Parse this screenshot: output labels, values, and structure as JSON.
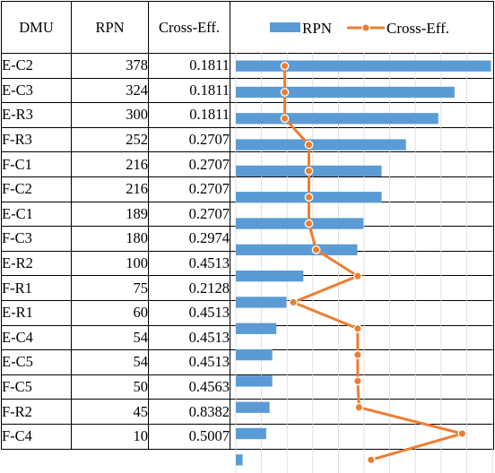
{
  "table": {
    "headers": {
      "dmu": "DMU",
      "rpn": "RPN",
      "cross": "Cross-Eff."
    }
  },
  "chart_data": {
    "type": "bar",
    "orientation": "horizontal",
    "categories": [
      "E-C2",
      "E-C3",
      "E-R3",
      "F-R3",
      "F-C1",
      "F-C2",
      "E-C1",
      "F-C3",
      "E-R2",
      "F-R1",
      "E-R1",
      "E-C4",
      "E-C5",
      "F-C5",
      "F-R2",
      "F-C4"
    ],
    "series": [
      {
        "name": "RPN",
        "type": "bar",
        "color": "#5b9bd5",
        "values": [
          378,
          324,
          300,
          252,
          216,
          216,
          189,
          180,
          100,
          75,
          60,
          54,
          54,
          50,
          45,
          10
        ],
        "labels": [
          "378",
          "324",
          "300",
          "252",
          "216",
          "216",
          "189",
          "180",
          "100",
          "75",
          "60",
          "54",
          "54",
          "50",
          "45",
          "10"
        ]
      },
      {
        "name": "Cross-Eff.",
        "type": "line",
        "color": "#ed7d31",
        "values": [
          0.1811,
          0.1811,
          0.1811,
          0.2707,
          0.2707,
          0.2707,
          0.2707,
          0.2974,
          0.4513,
          0.2128,
          0.4513,
          0.4513,
          0.4513,
          0.4563,
          0.8382,
          0.5007
        ],
        "labels": [
          "0.1811",
          "0.1811",
          "0.1811",
          "0.2707",
          "0.2707",
          "0.2707",
          "0.2707",
          "0.2974",
          "0.4513",
          "0.2128",
          "0.4513",
          "0.4513",
          "0.4513",
          "0.4563",
          "0.8382",
          "0.5007"
        ]
      }
    ],
    "rpn_axis_range": [
      0,
      380
    ],
    "cross_axis_range": [
      0,
      0.95
    ],
    "grid": true,
    "legend_position": "top"
  }
}
